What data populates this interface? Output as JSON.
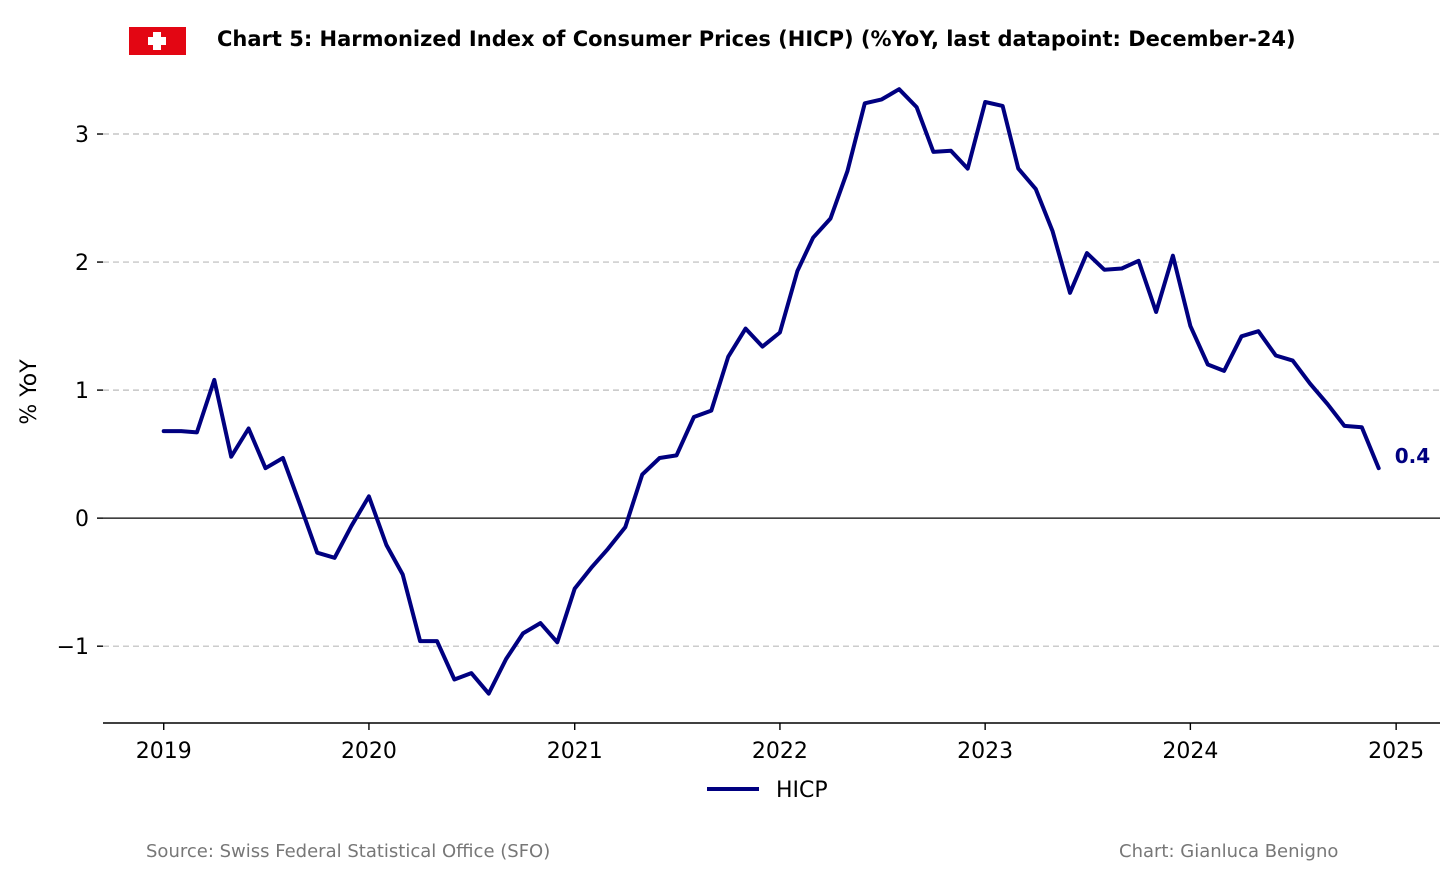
{
  "chart_data": {
    "type": "line",
    "title": "Chart 5: Harmonized Index of Consumer Prices (HICP) (%YoY, last datapoint: December-24)",
    "ylabel": "% YoY",
    "xlabel": "",
    "ylim": [
      -1.6,
      3.5
    ],
    "xlim": [
      "2018-09-15",
      "2025-03-20"
    ],
    "yticks": [
      {
        "value": -1,
        "label": "−1"
      },
      {
        "value": 0,
        "label": "0"
      },
      {
        "value": 1,
        "label": "1"
      },
      {
        "value": 2,
        "label": "2"
      },
      {
        "value": 3,
        "label": "3"
      }
    ],
    "xticks": [
      {
        "value": "2019-01-01",
        "label": "2019"
      },
      {
        "value": "2020-01-01",
        "label": "2020"
      },
      {
        "value": "2021-01-01",
        "label": "2021"
      },
      {
        "value": "2022-01-01",
        "label": "2022"
      },
      {
        "value": "2023-01-01",
        "label": "2023"
      },
      {
        "value": "2024-01-01",
        "label": "2024"
      },
      {
        "value": "2025-01-01",
        "label": "2025"
      }
    ],
    "grid": "horizontal dashed",
    "legend_position": "bottom-center",
    "series": [
      {
        "name": "HICP",
        "color": "#000080",
        "x": [
          "2019-01",
          "2019-02",
          "2019-03",
          "2019-04",
          "2019-05",
          "2019-06",
          "2019-07",
          "2019-08",
          "2019-09",
          "2019-10",
          "2019-11",
          "2019-12",
          "2020-01",
          "2020-02",
          "2020-03",
          "2020-04",
          "2020-05",
          "2020-06",
          "2020-07",
          "2020-08",
          "2020-09",
          "2020-10",
          "2020-11",
          "2020-12",
          "2021-01",
          "2021-02",
          "2021-03",
          "2021-04",
          "2021-05",
          "2021-06",
          "2021-07",
          "2021-08",
          "2021-09",
          "2021-10",
          "2021-11",
          "2021-12",
          "2022-01",
          "2022-02",
          "2022-03",
          "2022-04",
          "2022-05",
          "2022-06",
          "2022-07",
          "2022-08",
          "2022-09",
          "2022-10",
          "2022-11",
          "2022-12",
          "2023-01",
          "2023-02",
          "2023-03",
          "2023-04",
          "2023-05",
          "2023-06",
          "2023-07",
          "2023-08",
          "2023-09",
          "2023-10",
          "2023-11",
          "2023-12",
          "2024-01",
          "2024-02",
          "2024-03",
          "2024-04",
          "2024-05",
          "2024-06",
          "2024-07",
          "2024-08",
          "2024-09",
          "2024-10",
          "2024-11",
          "2024-12"
        ],
        "y": [
          0.68,
          0.68,
          0.67,
          1.08,
          0.48,
          0.7,
          0.39,
          0.47,
          0.1,
          -0.27,
          -0.31,
          -0.06,
          0.17,
          -0.21,
          -0.44,
          -0.96,
          -0.96,
          -1.26,
          -1.21,
          -1.37,
          -1.1,
          -0.9,
          -0.82,
          -0.97,
          -0.55,
          -0.38,
          -0.24,
          -0.07,
          0.34,
          0.47,
          0.49,
          0.79,
          0.84,
          1.26,
          1.48,
          1.34,
          1.45,
          1.93,
          2.19,
          2.34,
          2.71,
          3.24,
          3.27,
          3.35,
          3.21,
          2.86,
          2.87,
          2.73,
          3.25,
          3.22,
          2.73,
          2.57,
          2.24,
          1.76,
          2.07,
          1.94,
          1.95,
          2.01,
          1.61,
          2.05,
          1.5,
          1.2,
          1.15,
          1.42,
          1.46,
          1.27,
          1.23,
          1.05,
          0.89,
          0.72,
          0.71,
          0.39
        ]
      }
    ],
    "annotations": [
      {
        "text": "0.4",
        "x": "2024-12",
        "y": 0.39,
        "color": "#000080"
      }
    ]
  },
  "icons": {
    "flag": "swiss-flag-icon",
    "flag_color": "#e30613"
  },
  "footer": {
    "source": "Source: Swiss Federal Statistical Office (SFO)",
    "credit": "Chart: Gianluca Benigno"
  },
  "colors": {
    "series": "#000080",
    "grid": "#bbbbbb",
    "zero_line": "#000000",
    "footer_text": "#777777"
  }
}
